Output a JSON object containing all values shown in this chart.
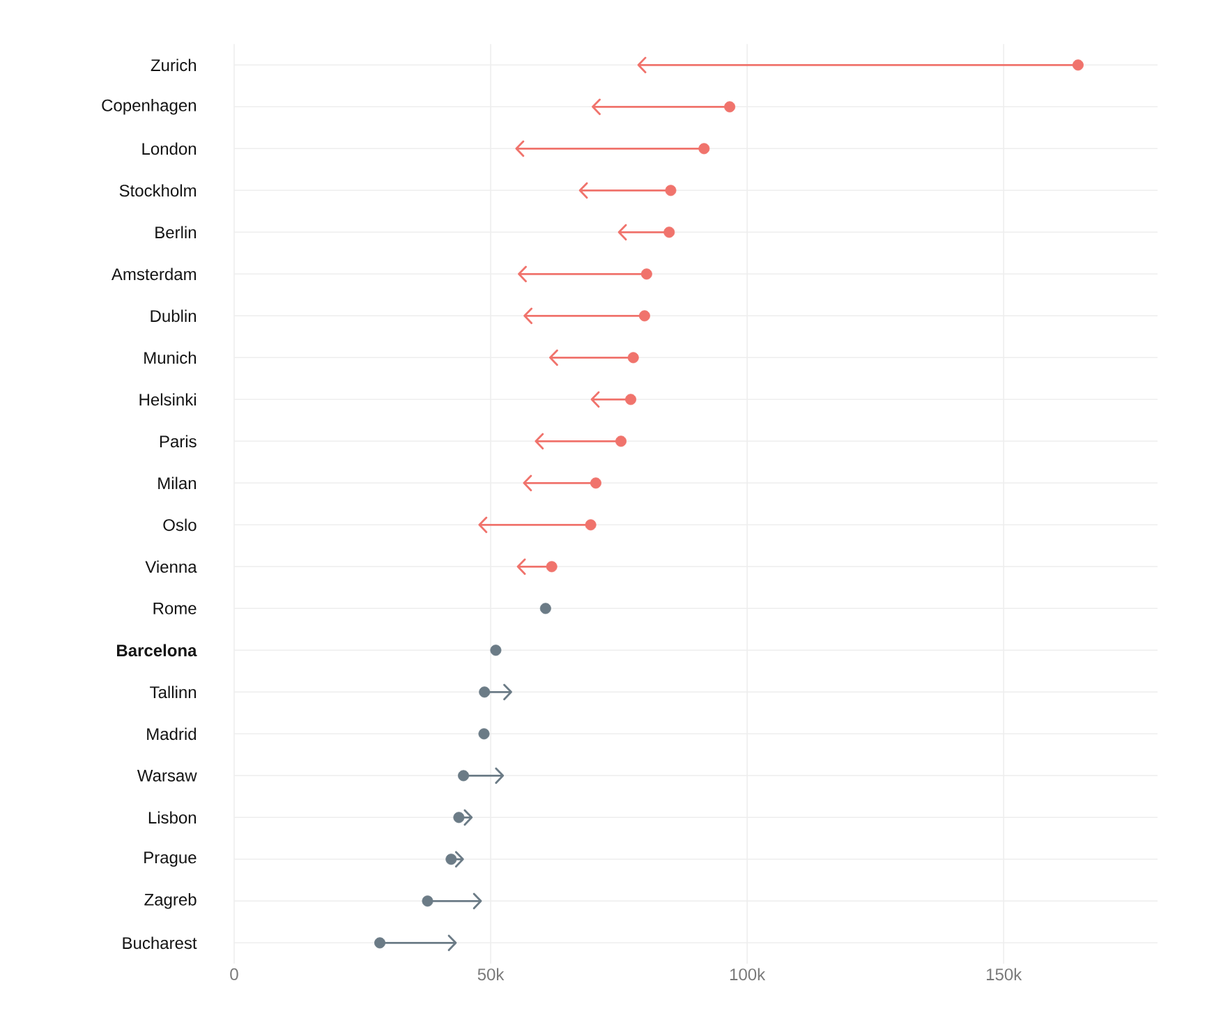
{
  "chart_data": {
    "type": "scatter",
    "orientation": "horizontal",
    "marker": "circle",
    "grid": true,
    "categories": [
      "Zurich",
      "Copenhagen",
      "London",
      "Stockholm",
      "Berlin",
      "Amsterdam",
      "Dublin",
      "Munich",
      "Helsinki",
      "Paris",
      "Milan",
      "Oslo",
      "Vienna",
      "Rome",
      "**Barcelona**",
      "Tallinn",
      "Madrid",
      "Warsaw",
      "Lisbon",
      "Prague",
      "Zagreb",
      "Bucharest"
    ],
    "values": [
      164500,
      96600,
      91600,
      85100,
      84800,
      80400,
      80000,
      77800,
      77300,
      75400,
      70500,
      69500,
      61900,
      60700,
      51000,
      48800,
      48700,
      44700,
      43800,
      42300,
      37700,
      28400
    ],
    "errors": [
      [
        78800,
        164500
      ],
      [
        69900,
        96600
      ],
      [
        55000,
        91600
      ],
      [
        67400,
        85100
      ],
      [
        75000,
        84800
      ],
      [
        55500,
        80400
      ],
      [
        56600,
        80000
      ],
      [
        61600,
        77800
      ],
      [
        69700,
        77300
      ],
      [
        58800,
        75400
      ],
      [
        56500,
        70500
      ],
      [
        47800,
        69500
      ],
      [
        55300,
        61900
      ],
      null,
      null,
      [
        48800,
        54000
      ],
      null,
      [
        44700,
        52400
      ],
      [
        43800,
        46300
      ],
      [
        42300,
        44600
      ],
      [
        37700,
        48100
      ],
      [
        28400,
        43200
      ]
    ],
    "colors": [
      "#f0736c",
      "#f0736c",
      "#f0736c",
      "#f0736c",
      "#f0736c",
      "#f0736c",
      "#f0736c",
      "#f0736c",
      "#f0736c",
      "#f0736c",
      "#f0736c",
      "#f0736c",
      "#f0736c",
      "#6b7b86",
      "#6b7b86",
      "#6b7b86",
      "#6b7b86",
      "#6b7b86",
      "#6b7b86",
      "#6b7b86",
      "#6b7b86",
      "#6b7b86"
    ],
    "xlim": [
      0,
      180000
    ],
    "xticks": [
      0,
      {
        "value": 50000,
        "label": "50k"
      },
      {
        "value": 100000,
        "label": "100k"
      },
      {
        "value": 150000,
        "label": "150k"
      }
    ]
  }
}
